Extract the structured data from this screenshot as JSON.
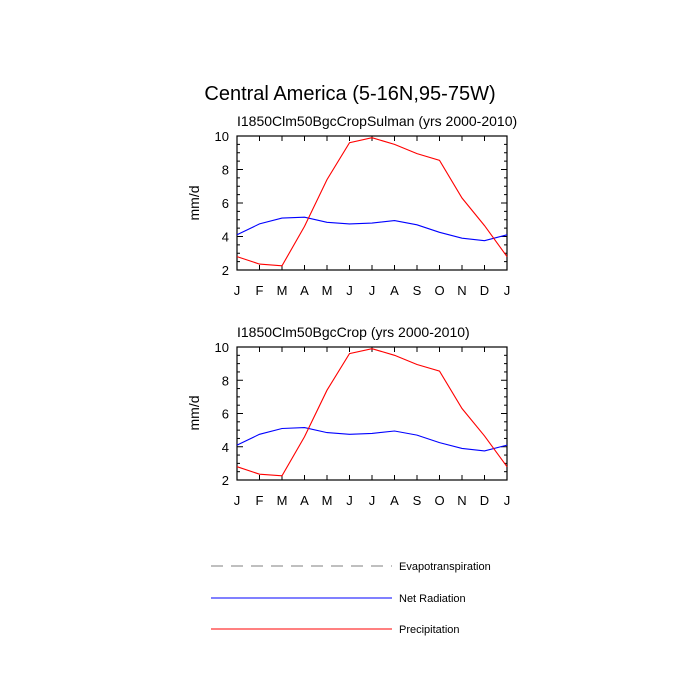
{
  "figure": {
    "title": "Central America (5-16N,95-75W)"
  },
  "chart_data": [
    {
      "type": "line",
      "title": "I1850Clm50BgcCropSulman (yrs 2000-2010)",
      "xlabel": "",
      "ylabel": "mm/d",
      "categories": [
        "J",
        "F",
        "M",
        "A",
        "M",
        "J",
        "J",
        "A",
        "S",
        "O",
        "N",
        "D",
        "J"
      ],
      "ylim": [
        2,
        10
      ],
      "yticks": [
        2,
        4,
        6,
        8,
        10
      ],
      "series": [
        {
          "name": "Net Radiation",
          "color": "#0000ff",
          "values": [
            4.1,
            4.75,
            5.1,
            5.15,
            4.85,
            4.75,
            4.8,
            4.95,
            4.7,
            4.25,
            3.9,
            3.75,
            4.1
          ]
        },
        {
          "name": "Precipitation",
          "color": "#ff0000",
          "values": [
            2.8,
            2.35,
            2.25,
            4.6,
            7.4,
            9.6,
            9.9,
            9.5,
            8.95,
            8.55,
            6.3,
            4.65,
            2.8
          ]
        }
      ]
    },
    {
      "type": "line",
      "title": "I1850Clm50BgcCrop (yrs 2000-2010)",
      "xlabel": "",
      "ylabel": "mm/d",
      "categories": [
        "J",
        "F",
        "M",
        "A",
        "M",
        "J",
        "J",
        "A",
        "S",
        "O",
        "N",
        "D",
        "J"
      ],
      "ylim": [
        2,
        10
      ],
      "yticks": [
        2,
        4,
        6,
        8,
        10
      ],
      "series": [
        {
          "name": "Net Radiation",
          "color": "#0000ff",
          "values": [
            4.1,
            4.75,
            5.1,
            5.15,
            4.85,
            4.75,
            4.8,
            4.95,
            4.7,
            4.25,
            3.9,
            3.75,
            4.1
          ]
        },
        {
          "name": "Precipitation",
          "color": "#ff0000",
          "values": [
            2.8,
            2.35,
            2.25,
            4.6,
            7.4,
            9.6,
            9.9,
            9.5,
            8.95,
            8.55,
            6.3,
            4.65,
            2.8
          ]
        }
      ]
    }
  ],
  "legend": {
    "items": [
      {
        "label": "Evapotranspiration",
        "color": "#999999",
        "style": "dashed"
      },
      {
        "label": "Net Radiation",
        "color": "#0000ff",
        "style": "solid"
      },
      {
        "label": "Precipitation",
        "color": "#ff0000",
        "style": "solid"
      }
    ]
  }
}
